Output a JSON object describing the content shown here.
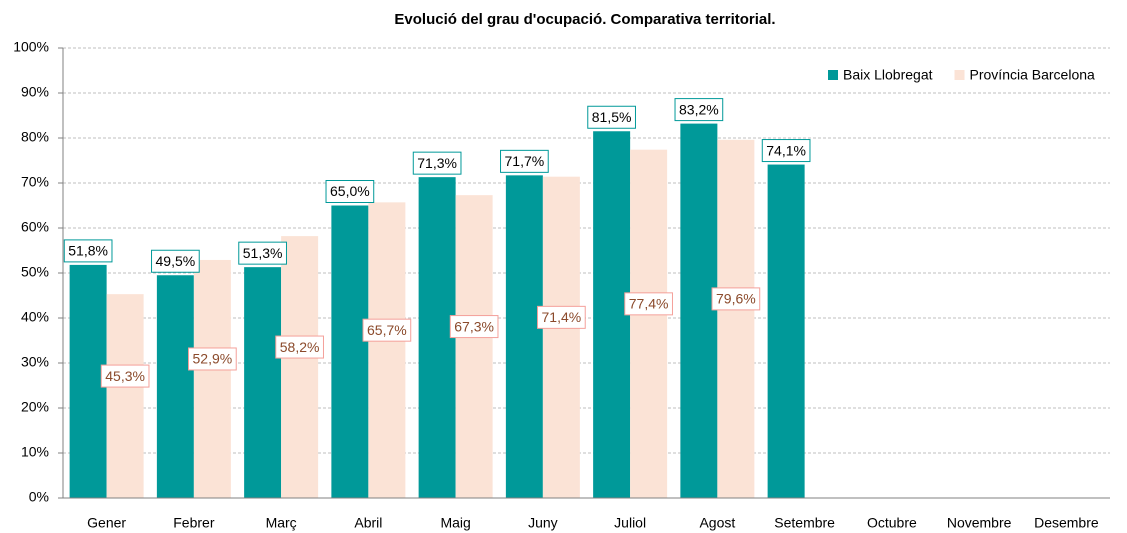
{
  "chart_data": {
    "type": "bar",
    "title": "Evolució del grau d'ocupació. Comparativa territorial.",
    "categories": [
      "Gener",
      "Febrer",
      "Març",
      "Abril",
      "Maig",
      "Juny",
      "Juliol",
      "Agost",
      "Setembre",
      "Octubre",
      "Novembre",
      "Desembre"
    ],
    "series": [
      {
        "name": "Baix Llobregat",
        "color": "#009999",
        "values": [
          51.8,
          49.5,
          51.3,
          65.0,
          71.3,
          71.7,
          81.5,
          83.2,
          74.1,
          null,
          null,
          null
        ],
        "value_labels": [
          "51,8%",
          "49,5%",
          "51,3%",
          "65,0%",
          "71,3%",
          "71,7%",
          "81,5%",
          "83,2%",
          "74,1%",
          null,
          null,
          null
        ]
      },
      {
        "name": "Província Barcelona",
        "color": "#fbe3d6",
        "values": [
          45.3,
          52.9,
          58.2,
          65.7,
          67.3,
          71.4,
          77.4,
          79.6,
          null,
          null,
          null,
          null
        ],
        "value_labels": [
          "45,3%",
          "52,9%",
          "58,2%",
          "65,7%",
          "67,3%",
          "71,4%",
          "77,4%",
          "79,6%",
          null,
          null,
          null,
          null
        ]
      }
    ],
    "ylim": [
      0,
      100
    ],
    "yticks": [
      {
        "value": 0,
        "label": "0%"
      },
      {
        "value": 10,
        "label": "10%"
      },
      {
        "value": 20,
        "label": "20%"
      },
      {
        "value": 30,
        "label": "30%"
      },
      {
        "value": 40,
        "label": "40%"
      },
      {
        "value": 50,
        "label": "50%"
      },
      {
        "value": 60,
        "label": "60%"
      },
      {
        "value": 70,
        "label": "70%"
      },
      {
        "value": 80,
        "label": "80%"
      },
      {
        "value": 90,
        "label": "90%"
      },
      {
        "value": 100,
        "label": "100%"
      }
    ],
    "grid": true,
    "legend": "top-right"
  }
}
